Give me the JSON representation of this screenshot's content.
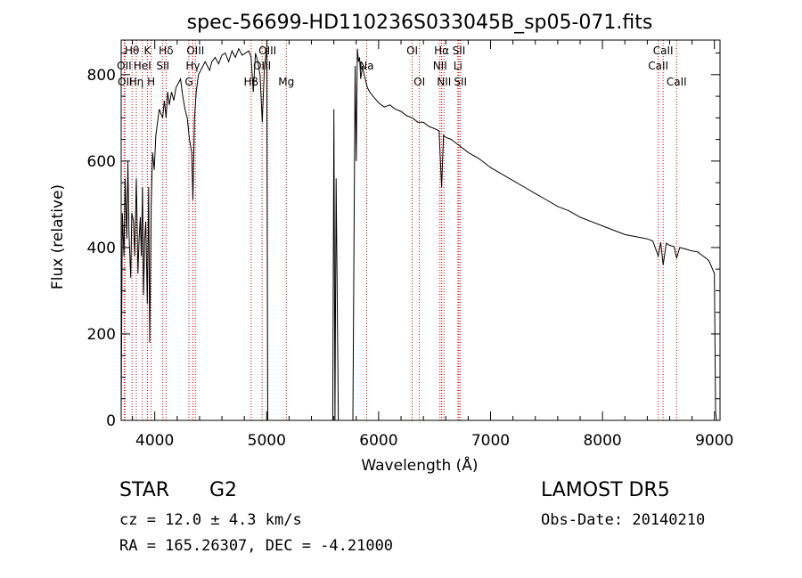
{
  "chart_data": {
    "type": "line",
    "title": "spec-56699-HD110236S033045B_sp05-071.fits",
    "xlabel": "Wavelength (Å)",
    "ylabel": "Flux (relative)",
    "xlim": [
      3700,
      9050
    ],
    "ylim": [
      0,
      880
    ],
    "xticks": [
      4000,
      5000,
      6000,
      7000,
      8000,
      9000
    ],
    "yticks": [
      0,
      200,
      400,
      600,
      800
    ],
    "grid": false,
    "series": [
      {
        "x": [
          3700,
          3710,
          3725,
          3735,
          3750,
          3760,
          3770,
          3785,
          3795,
          3810,
          3820,
          3835,
          3850,
          3860,
          3870,
          3880,
          3890,
          3900,
          3910,
          3920,
          3933,
          3945,
          3955,
          3968,
          3980,
          3995,
          4010,
          4025,
          4040,
          4055,
          4070,
          4085,
          4101,
          4115,
          4130,
          4150,
          4170,
          4190,
          4210,
          4230,
          4250,
          4270,
          4290,
          4310,
          4330,
          4341,
          4355,
          4370,
          4390,
          4410,
          4430,
          4450,
          4470,
          4490,
          4510,
          4540,
          4570,
          4600,
          4630,
          4660,
          4690,
          4720,
          4750,
          4780,
          4810,
          4840,
          4861,
          4880,
          4900,
          4920,
          4940,
          4960,
          4980,
          5000,
          5010,
          5050,
          5100,
          5150,
          5200,
          5300,
          5400,
          5500,
          5590,
          5600,
          5610,
          5620,
          5640,
          5660,
          5690,
          5720,
          5750,
          5770,
          5790,
          5800,
          5810,
          5820,
          5830,
          5840,
          5855,
          5870,
          5890,
          5900,
          5920,
          5950,
          6000,
          6050,
          6100,
          6150,
          6200,
          6250,
          6300,
          6350,
          6400,
          6450,
          6500,
          6540,
          6563,
          6580,
          6600,
          6650,
          6700,
          6750,
          6800,
          6900,
          7000,
          7100,
          7200,
          7300,
          7400,
          7500,
          7600,
          7700,
          7800,
          7900,
          8000,
          8100,
          8200,
          8300,
          8400,
          8450,
          8498,
          8520,
          8542,
          8570,
          8600,
          8640,
          8662,
          8690,
          8720,
          8750,
          8800,
          8850,
          8900,
          8950,
          9000,
          9010,
          9020
        ],
        "y": [
          20,
          480,
          380,
          560,
          420,
          600,
          430,
          330,
          480,
          460,
          380,
          560,
          340,
          420,
          470,
          380,
          540,
          290,
          420,
          460,
          270,
          540,
          180,
          500,
          620,
          580,
          660,
          690,
          720,
          710,
          700,
          740,
          700,
          760,
          730,
          760,
          740,
          770,
          780,
          790,
          750,
          720,
          700,
          650,
          620,
          510,
          700,
          760,
          800,
          810,
          820,
          830,
          820,
          810,
          830,
          840,
          825,
          845,
          850,
          830,
          855,
          840,
          860,
          845,
          850,
          855,
          840,
          760,
          850,
          830,
          800,
          690,
          820,
          860,
          0,
          0,
          0,
          0,
          0,
          0,
          0,
          0,
          0,
          720,
          0,
          560,
          0,
          0,
          0,
          0,
          0,
          0,
          820,
          600,
          860,
          830,
          840,
          790,
          820,
          800,
          780,
          770,
          760,
          750,
          735,
          725,
          730,
          720,
          715,
          705,
          700,
          690,
          690,
          680,
          675,
          670,
          540,
          660,
          655,
          650,
          640,
          630,
          620,
          605,
          585,
          570,
          555,
          540,
          525,
          510,
          495,
          485,
          470,
          460,
          450,
          440,
          430,
          425,
          420,
          415,
          380,
          412,
          360,
          410,
          405,
          402,
          375,
          400,
          398,
          396,
          392,
          390,
          380,
          370,
          340,
          20,
          0
        ]
      }
    ],
    "annotations": [
      {
        "label": "Hθ",
        "x": 3797,
        "row": 1
      },
      {
        "label": "OII",
        "x": 3727,
        "row": 2
      },
      {
        "label": "OII",
        "x": 3734,
        "row": 3
      },
      {
        "label": "Hη",
        "x": 3835,
        "row": 3
      },
      {
        "label": "K",
        "x": 3934,
        "row": 1
      },
      {
        "label": "HeI",
        "x": 3889,
        "row": 2
      },
      {
        "label": "H",
        "x": 3968,
        "row": 3
      },
      {
        "label": "Hδ",
        "x": 4101,
        "row": 1
      },
      {
        "label": "SII",
        "x": 4072,
        "row": 2
      },
      {
        "label": "OIII",
        "x": 4363,
        "row": 1
      },
      {
        "label": "Hγ",
        "x": 4340,
        "row": 2
      },
      {
        "label": "G",
        "x": 4305,
        "row": 3
      },
      {
        "label": "OIII",
        "x": 5007,
        "row": 1
      },
      {
        "label": "OIII",
        "x": 4959,
        "row": 2
      },
      {
        "label": "Hβ",
        "x": 4861,
        "row": 3
      },
      {
        "label": "Mg",
        "x": 5175,
        "row": 3
      },
      {
        "label": "Na",
        "x": 5893,
        "row": 2
      },
      {
        "label": "OI",
        "x": 6300,
        "row": 1
      },
      {
        "label": "OI",
        "x": 6364,
        "row": 3
      },
      {
        "label": "Hα",
        "x": 6563,
        "row": 1
      },
      {
        "label": "NII",
        "x": 6548,
        "row": 2
      },
      {
        "label": "NII",
        "x": 6584,
        "row": 3
      },
      {
        "label": "SII",
        "x": 6717,
        "row": 1
      },
      {
        "label": "Li",
        "x": 6708,
        "row": 2
      },
      {
        "label": "SII",
        "x": 6731,
        "row": 3
      },
      {
        "label": "CaII",
        "x": 8542,
        "row": 1
      },
      {
        "label": "CaII",
        "x": 8498,
        "row": 2
      },
      {
        "label": "CaII",
        "x": 8662,
        "row": 3
      }
    ],
    "line_markers": [
      3727,
      3734,
      3797,
      3835,
      3889,
      3934,
      3968,
      4072,
      4101,
      4305,
      4340,
      4363,
      4861,
      4959,
      5007,
      5175,
      5893,
      6300,
      6364,
      6548,
      6563,
      6584,
      6708,
      6717,
      6731,
      8498,
      8542,
      8662
    ]
  },
  "info": {
    "object_class": "STAR",
    "subclass": "G2",
    "survey": "LAMOST DR5",
    "redshift": "cz = 12.0 ± 4.3 km/s",
    "obs_date": "Obs-Date: 20140210",
    "coords": "RA = 165.26307, DEC =  -4.21000"
  }
}
